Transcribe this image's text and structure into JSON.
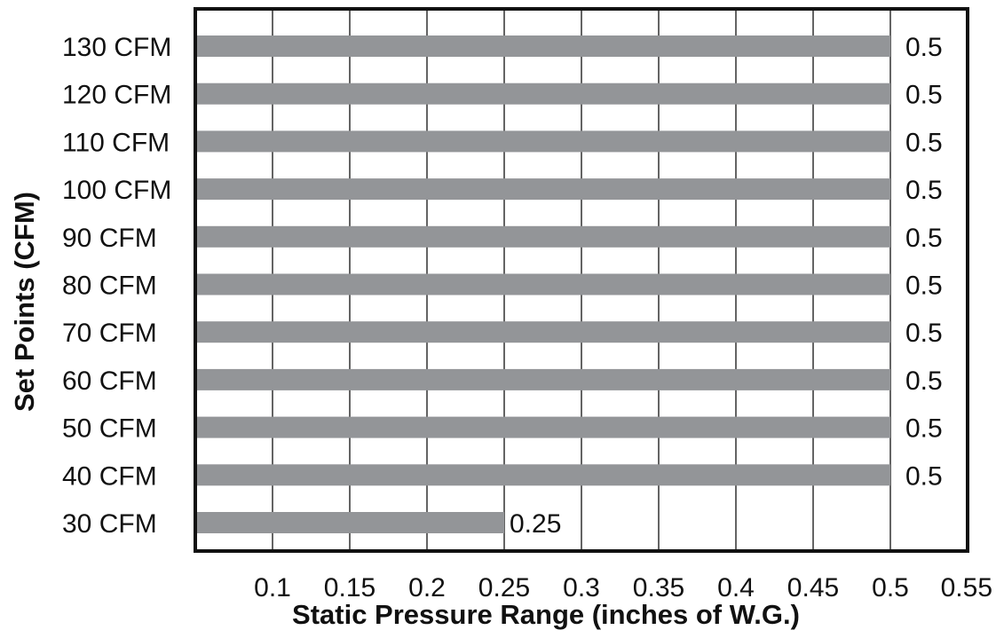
{
  "chart_data": {
    "type": "bar",
    "orientation": "horizontal",
    "categories": [
      "130 CFM",
      "120 CFM",
      "110 CFM",
      "100 CFM",
      "90 CFM",
      "80 CFM",
      "70 CFM",
      "60 CFM",
      "50 CFM",
      "40 CFM",
      "30 CFM"
    ],
    "values": [
      0.5,
      0.5,
      0.5,
      0.5,
      0.5,
      0.5,
      0.5,
      0.5,
      0.5,
      0.5,
      0.25
    ],
    "value_labels": [
      "0.5",
      "0.5",
      "0.5",
      "0.5",
      "0.5",
      "0.5",
      "0.5",
      "0.5",
      "0.5",
      "0.5",
      "0.25"
    ],
    "xlabel": "Static Pressure Range (inches of W.G.)",
    "ylabel": "Set Points (CFM)",
    "xlim": [
      0.05,
      0.55
    ],
    "xticks": [
      0.1,
      0.15,
      0.2,
      0.25,
      0.3,
      0.35,
      0.4,
      0.45,
      0.5,
      0.55
    ],
    "xtick_labels": [
      "0.1",
      "0.15",
      "0.2",
      "0.25",
      "0.3",
      "0.35",
      "0.4",
      "0.45",
      "0.5",
      "0.55"
    ],
    "grid": "vertical",
    "legend": "none",
    "colors": {
      "bar": "#939598",
      "frame": "#111111",
      "grid": "#111111"
    }
  }
}
